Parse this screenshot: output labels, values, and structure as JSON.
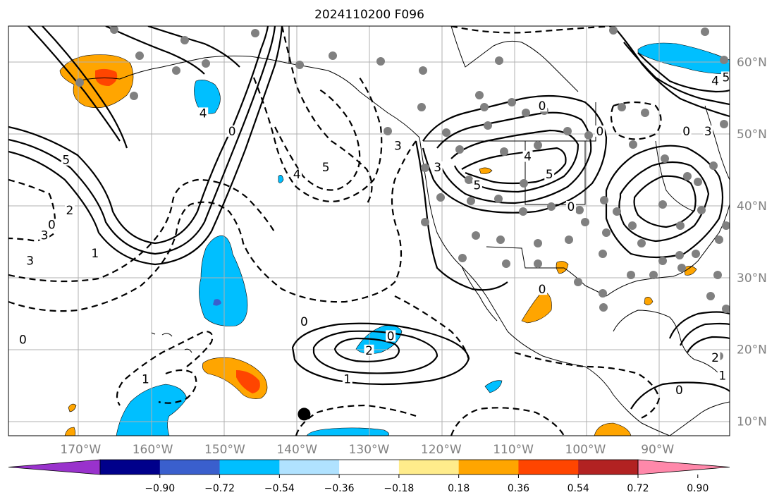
{
  "title": "2024110200 F096",
  "map": {
    "lon_range": [
      -180,
      -80
    ],
    "lat_range": [
      8,
      65
    ],
    "lon_ticks": [
      {
        "lon": -170,
        "label": "170°W"
      },
      {
        "lon": -160,
        "label": "160°W"
      },
      {
        "lon": -150,
        "label": "150°W"
      },
      {
        "lon": -140,
        "label": "140°W"
      },
      {
        "lon": -130,
        "label": "130°W"
      },
      {
        "lon": -120,
        "label": "120°W"
      },
      {
        "lon": -110,
        "label": "110°W"
      },
      {
        "lon": -100,
        "label": "100°W"
      },
      {
        "lon": -90,
        "label": "90°W"
      }
    ],
    "lat_ticks": [
      {
        "lat": 60,
        "label": "60°N"
      },
      {
        "lat": 50,
        "label": "50°N"
      },
      {
        "lat": 40,
        "label": "40°N"
      },
      {
        "lat": 30,
        "label": "30°N"
      },
      {
        "lat": 20,
        "label": "20°N"
      },
      {
        "lat": 10,
        "label": "10°N"
      }
    ],
    "grid": true,
    "marker": {
      "lon": -139,
      "lat": 11,
      "color": "#000000"
    }
  },
  "colorbar": {
    "orientation": "horizontal",
    "extend": "both",
    "ticks": [
      "−0.90",
      "−0.72",
      "−0.54",
      "−0.36",
      "−0.18",
      "0.18",
      "0.36",
      "0.54",
      "0.72",
      "0.90"
    ],
    "colors": [
      "#9932cc",
      "#00008b",
      "#3a5fcd",
      "#00bfff",
      "#b0e2ff",
      "#ffffff",
      "#ffec8b",
      "#ffa500",
      "#ff4500",
      "#b22222",
      "#ff88aa"
    ]
  },
  "contour_labels": [
    {
      "text": "5",
      "lon": -172,
      "lat": 46
    },
    {
      "text": "3",
      "lon": -175,
      "lat": 35.5
    },
    {
      "text": "2",
      "lon": -171.5,
      "lat": 39
    },
    {
      "text": "1",
      "lon": -168,
      "lat": 33
    },
    {
      "text": "3",
      "lon": -177,
      "lat": 32
    },
    {
      "text": "0",
      "lon": -178,
      "lat": 21
    },
    {
      "text": "4",
      "lon": -153,
      "lat": 52.5
    },
    {
      "text": "0",
      "lon": -149,
      "lat": 50
    },
    {
      "text": "4",
      "lon": -140,
      "lat": 44
    },
    {
      "text": "5",
      "lon": -136,
      "lat": 45
    },
    {
      "text": "3",
      "lon": -126,
      "lat": 48
    },
    {
      "text": "0",
      "lon": -139,
      "lat": 23.5
    },
    {
      "text": "0",
      "lon": -174,
      "lat": 37
    },
    {
      "text": "2",
      "lon": -130,
      "lat": 19.5
    },
    {
      "text": "1",
      "lon": -133,
      "lat": 15.5
    },
    {
      "text": "0",
      "lon": -127,
      "lat": 21.5
    },
    {
      "text": "1",
      "lon": -161,
      "lat": 15.5
    },
    {
      "text": "3",
      "lon": -120.5,
      "lat": 45
    },
    {
      "text": "5",
      "lon": -115,
      "lat": 42.5
    },
    {
      "text": "4",
      "lon": -108,
      "lat": 46.5
    },
    {
      "text": "5",
      "lon": -105,
      "lat": 44
    },
    {
      "text": "0",
      "lon": -102,
      "lat": 39.5
    },
    {
      "text": "0",
      "lon": -106,
      "lat": 53.5
    },
    {
      "text": "0",
      "lon": -98,
      "lat": 50
    },
    {
      "text": "0",
      "lon": -86,
      "lat": 50
    },
    {
      "text": "4",
      "lon": -82,
      "lat": 57
    },
    {
      "text": "3",
      "lon": -83,
      "lat": 50
    },
    {
      "text": "5",
      "lon": -80.5,
      "lat": 57.5
    },
    {
      "text": "0",
      "lon": -106,
      "lat": 28
    },
    {
      "text": "0",
      "lon": -87,
      "lat": 14
    },
    {
      "text": "2",
      "lon": -82,
      "lat": 18.5
    },
    {
      "text": "1",
      "lon": -81,
      "lat": 16
    }
  ]
}
